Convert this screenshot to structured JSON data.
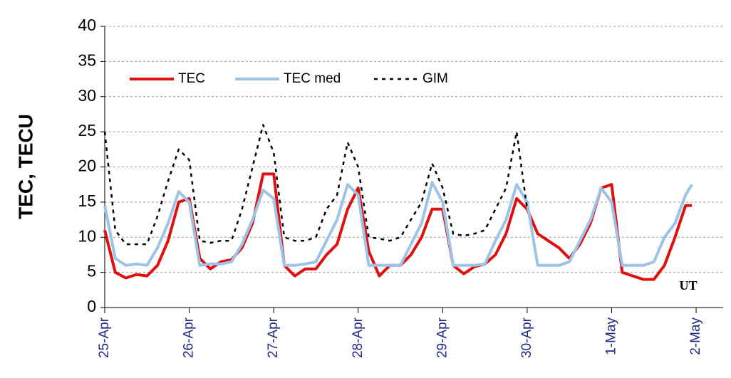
{
  "chart_data": {
    "type": "line",
    "y_label": "TEC, TECU",
    "annotation": "UT",
    "x": [
      0,
      0.125,
      0.25,
      0.375,
      0.5,
      0.625,
      0.75,
      0.875,
      1,
      1.125,
      1.25,
      1.375,
      1.5,
      1.625,
      1.75,
      1.875,
      2,
      2.125,
      2.25,
      2.375,
      2.5,
      2.625,
      2.75,
      2.875,
      3,
      3.125,
      3.25,
      3.375,
      3.5,
      3.625,
      3.75,
      3.875,
      4,
      4.125,
      4.25,
      4.375,
      4.5,
      4.625,
      4.75,
      4.875,
      5,
      5.125,
      5.25,
      5.375,
      5.5,
      5.625,
      5.75,
      5.875,
      6,
      6.125,
      6.25,
      6.375,
      6.5,
      6.625,
      6.75,
      6.875,
      6.95
    ],
    "series": [
      {
        "name": "TEC",
        "color": "#e01010",
        "style": "solid",
        "values": [
          11,
          5,
          4.2,
          4.7,
          4.5,
          6,
          9.5,
          15,
          15.5,
          7,
          5.5,
          6.5,
          6.8,
          8.5,
          12,
          19,
          19,
          6,
          4.5,
          5.5,
          5.5,
          7.5,
          9,
          14,
          17,
          8,
          4.5,
          6,
          6,
          7.5,
          10,
          14,
          14,
          6,
          4.8,
          5.8,
          6.2,
          7.5,
          10.5,
          15.5,
          14,
          10.5,
          9.5,
          8.5,
          7,
          9,
          12,
          17,
          17.5,
          5,
          4.5,
          4,
          4,
          6,
          10,
          14.5,
          14.5
        ]
      },
      {
        "name": "TEC med",
        "color": "#9dc3e6",
        "style": "solid",
        "values": [
          14.5,
          7,
          6,
          6.2,
          6,
          8.5,
          12,
          16.5,
          15,
          6,
          6.2,
          6.2,
          6.5,
          9,
          12.5,
          16.7,
          15.5,
          6,
          6,
          6.2,
          6.5,
          9.5,
          12.5,
          17.5,
          16,
          6,
          6,
          6,
          6,
          9,
          12,
          17.8,
          15,
          6,
          6,
          6,
          6.2,
          9.5,
          12.5,
          17.5,
          15,
          6,
          6,
          6,
          6.5,
          9.5,
          12.5,
          17,
          15,
          6,
          6,
          6,
          6.5,
          10,
          12,
          16,
          17.5
        ]
      },
      {
        "name": "GIM",
        "color": "#000000",
        "style": "dotted",
        "values": [
          25,
          11,
          9,
          9,
          9,
          13,
          18,
          22.5,
          21,
          9.5,
          9.2,
          9.5,
          9.5,
          14,
          20,
          26,
          22,
          10,
          9.5,
          9.5,
          10,
          14,
          16,
          23.5,
          20,
          10,
          9.8,
          9.5,
          10,
          12.5,
          15,
          20.5,
          17,
          10.5,
          10.2,
          10.5,
          11,
          14,
          17,
          25,
          14,
          null,
          null,
          null,
          null,
          null,
          null,
          null,
          null,
          null,
          null,
          null,
          null,
          null,
          null,
          null,
          null
        ]
      }
    ],
    "xlim": [
      0,
      7.32
    ],
    "xticks": [
      {
        "value": 0,
        "label": "25-Apr"
      },
      {
        "value": 1,
        "label": "26-Apr"
      },
      {
        "value": 2,
        "label": "27-Apr"
      },
      {
        "value": 3,
        "label": "28-Apr"
      },
      {
        "value": 4,
        "label": "29-Apr"
      },
      {
        "value": 5,
        "label": "30-Apr"
      },
      {
        "value": 6,
        "label": "1-May"
      },
      {
        "value": 7,
        "label": "2-May"
      }
    ],
    "ylim": [
      0,
      40
    ],
    "yticks": [
      0,
      5,
      10,
      15,
      20,
      25,
      30,
      35,
      40
    ],
    "grid": true,
    "legend": "top"
  }
}
